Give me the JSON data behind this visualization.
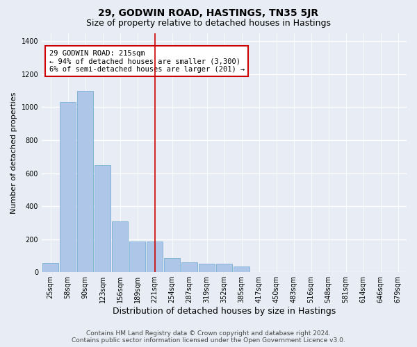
{
  "title": "29, GODWIN ROAD, HASTINGS, TN35 5JR",
  "subtitle": "Size of property relative to detached houses in Hastings",
  "xlabel": "Distribution of detached houses by size in Hastings",
  "ylabel": "Number of detached properties",
  "bins": [
    25,
    58,
    90,
    123,
    156,
    189,
    221,
    254,
    287,
    319,
    352,
    385,
    417,
    450,
    483,
    516,
    548,
    581,
    614,
    646,
    679
  ],
  "bar_heights": [
    55,
    1030,
    1100,
    650,
    310,
    185,
    185,
    85,
    60,
    50,
    50,
    35,
    0,
    0,
    0,
    0,
    0,
    0,
    0,
    0
  ],
  "bar_color": "#aec6e8",
  "bar_edge_color": "#7aafd4",
  "background_color": "#e8edf5",
  "grid_color": "#ffffff",
  "annotation_line1": "29 GODWIN ROAD: 215sqm",
  "annotation_line2": "← 94% of detached houses are smaller (3,300)",
  "annotation_line3": "6% of semi-detached houses are larger (201) →",
  "annotation_box_color": "#ffffff",
  "annotation_box_edge": "#cc0000",
  "vline_x": 221,
  "vline_color": "#cc0000",
  "ylim": [
    0,
    1450
  ],
  "yticks": [
    0,
    200,
    400,
    600,
    800,
    1000,
    1200,
    1400
  ],
  "footer_line1": "Contains HM Land Registry data © Crown copyright and database right 2024.",
  "footer_line2": "Contains public sector information licensed under the Open Government Licence v3.0.",
  "title_fontsize": 10,
  "subtitle_fontsize": 9,
  "xlabel_fontsize": 9,
  "ylabel_fontsize": 8,
  "tick_fontsize": 7,
  "annotation_fontsize": 7.5,
  "footer_fontsize": 6.5
}
